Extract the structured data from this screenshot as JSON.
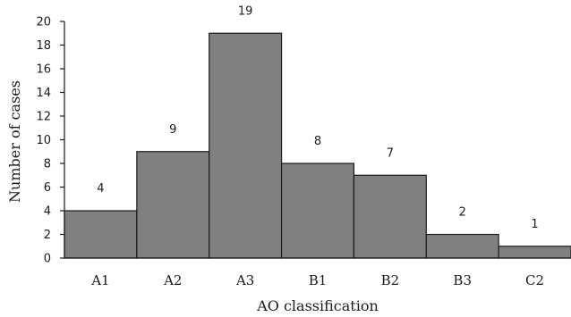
{
  "chart_data": {
    "type": "bar",
    "title": "",
    "xlabel": "AO classification",
    "ylabel": "Number of cases",
    "categories": [
      "A1",
      "A2",
      "A3",
      "B1",
      "B2",
      "B3",
      "C2"
    ],
    "values": [
      4,
      9,
      19,
      8,
      7,
      2,
      1
    ],
    "ylim": [
      0,
      20
    ],
    "yticks": [
      0,
      2,
      4,
      6,
      8,
      10,
      12,
      14,
      16,
      18,
      20
    ],
    "grid": false,
    "legend": "none",
    "bar_color": "#808080",
    "bar_edge_color": "#1a1a1a",
    "bar_gap": 0
  }
}
